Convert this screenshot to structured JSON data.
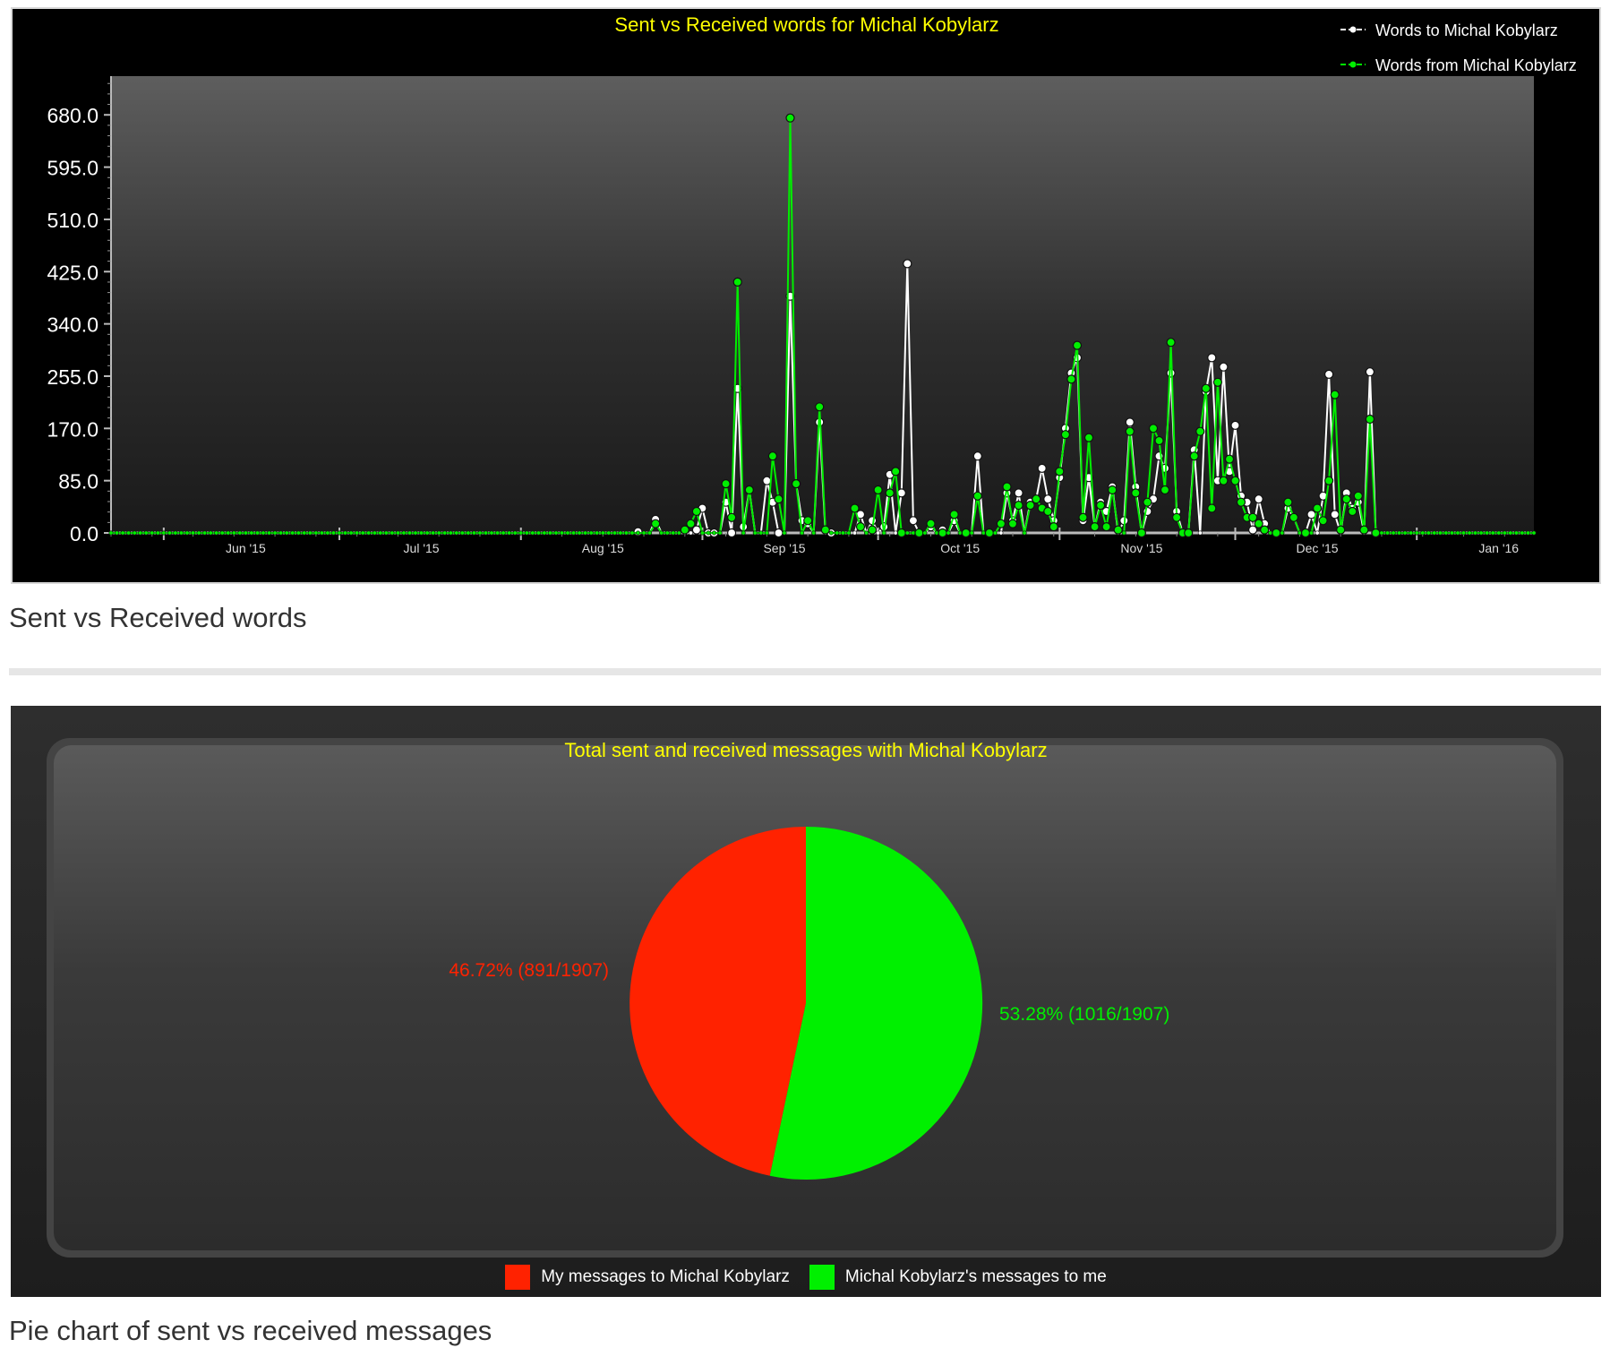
{
  "line_chart": {
    "caption": "Sent vs Received words",
    "colors": {
      "title": "#ffff00",
      "received": "#ffffff",
      "sent": "#00ee00",
      "axis_text": "#ffffff"
    },
    "chart_data": {
      "type": "line",
      "title": "Sent vs Received words for Michal Kobylarz",
      "xlabel": "",
      "ylabel": "",
      "x_range": [
        "2015-05-23",
        "2016-01-21"
      ],
      "ylim": [
        0,
        743
      ],
      "y_ticks": [
        "0.0",
        "85.0",
        "170.0",
        "255.0",
        "340.0",
        "425.0",
        "510.0",
        "595.0",
        "680.0"
      ],
      "x_ticks": [
        {
          "label": "Jun '15",
          "date": "2015-06-01"
        },
        {
          "label": "Jul '15",
          "date": "2015-07-01"
        },
        {
          "label": "Aug '15",
          "date": "2015-08-01"
        },
        {
          "label": "Sep '15",
          "date": "2015-09-01"
        },
        {
          "label": "Oct '15",
          "date": "2015-10-01"
        },
        {
          "label": "Nov '15",
          "date": "2015-11-01"
        },
        {
          "label": "Dec '15",
          "date": "2015-12-01"
        },
        {
          "label": "Jan '16",
          "date": "2016-01-01"
        }
      ],
      "legend_position": "top-right",
      "series": [
        {
          "name": "Words to Michal Kobylarz",
          "points": [
            [
              "2015-08-21",
              2
            ],
            [
              "2015-08-24",
              22
            ],
            [
              "2015-08-31",
              5
            ],
            [
              "2015-09-01",
              40
            ],
            [
              "2015-09-02",
              0
            ],
            [
              "2015-09-03",
              0
            ],
            [
              "2015-09-05",
              50
            ],
            [
              "2015-09-06",
              0
            ],
            [
              "2015-09-07",
              235
            ],
            [
              "2015-09-08",
              10
            ],
            [
              "2015-09-09",
              70
            ],
            [
              "2015-09-12",
              85
            ],
            [
              "2015-09-13",
              50
            ],
            [
              "2015-09-14",
              0
            ],
            [
              "2015-09-16",
              385
            ],
            [
              "2015-09-17",
              80
            ],
            [
              "2015-09-18",
              20
            ],
            [
              "2015-09-19",
              15
            ],
            [
              "2015-09-21",
              180
            ],
            [
              "2015-09-23",
              0
            ],
            [
              "2015-09-28",
              30
            ],
            [
              "2015-09-30",
              20
            ],
            [
              "2015-10-02",
              10
            ],
            [
              "2015-10-03",
              95
            ],
            [
              "2015-10-05",
              65
            ],
            [
              "2015-10-06",
              438
            ],
            [
              "2015-10-07",
              20
            ],
            [
              "2015-10-10",
              10
            ],
            [
              "2015-10-12",
              5
            ],
            [
              "2015-10-14",
              20
            ],
            [
              "2015-10-18",
              125
            ],
            [
              "2015-10-20",
              0
            ],
            [
              "2015-10-23",
              65
            ],
            [
              "2015-10-24",
              20
            ],
            [
              "2015-10-25",
              65
            ],
            [
              "2015-10-27",
              50
            ],
            [
              "2015-10-28",
              55
            ],
            [
              "2015-10-29",
              105
            ],
            [
              "2015-10-30",
              55
            ],
            [
              "2015-10-31",
              20
            ],
            [
              "2015-11-01",
              90
            ],
            [
              "2015-11-02",
              170
            ],
            [
              "2015-11-03",
              260
            ],
            [
              "2015-11-04",
              285
            ],
            [
              "2015-11-05",
              20
            ],
            [
              "2015-11-06",
              90
            ],
            [
              "2015-11-07",
              10
            ],
            [
              "2015-11-08",
              50
            ],
            [
              "2015-11-09",
              35
            ],
            [
              "2015-11-10",
              75
            ],
            [
              "2015-11-12",
              20
            ],
            [
              "2015-11-13",
              180
            ],
            [
              "2015-11-14",
              75
            ],
            [
              "2015-11-16",
              35
            ],
            [
              "2015-11-17",
              55
            ],
            [
              "2015-11-18",
              125
            ],
            [
              "2015-11-19",
              105
            ],
            [
              "2015-11-20",
              260
            ],
            [
              "2015-11-21",
              35
            ],
            [
              "2015-11-24",
              135
            ],
            [
              "2015-11-26",
              230
            ],
            [
              "2015-11-27",
              285
            ],
            [
              "2015-11-28",
              85
            ],
            [
              "2015-11-29",
              270
            ],
            [
              "2015-11-30",
              100
            ],
            [
              "2015-12-01",
              175
            ],
            [
              "2015-12-02",
              60
            ],
            [
              "2015-12-03",
              50
            ],
            [
              "2015-12-04",
              5
            ],
            [
              "2015-12-05",
              55
            ],
            [
              "2015-12-06",
              15
            ],
            [
              "2015-12-10",
              40
            ],
            [
              "2015-12-11",
              25
            ],
            [
              "2015-12-14",
              30
            ],
            [
              "2015-12-16",
              60
            ],
            [
              "2015-12-17",
              258
            ],
            [
              "2015-12-18",
              30
            ],
            [
              "2015-12-20",
              65
            ],
            [
              "2015-12-21",
              40
            ],
            [
              "2015-12-22",
              50
            ],
            [
              "2015-12-24",
              262
            ],
            [
              "2015-12-25",
              0
            ]
          ]
        },
        {
          "name": "Words from Michal Kobylarz",
          "points": [
            [
              "2015-08-24",
              15
            ],
            [
              "2015-08-29",
              5
            ],
            [
              "2015-08-30",
              15
            ],
            [
              "2015-08-31",
              35
            ],
            [
              "2015-09-05",
              80
            ],
            [
              "2015-09-06",
              25
            ],
            [
              "2015-09-07",
              408
            ],
            [
              "2015-09-09",
              70
            ],
            [
              "2015-09-13",
              125
            ],
            [
              "2015-09-14",
              55
            ],
            [
              "2015-09-16",
              675
            ],
            [
              "2015-09-17",
              80
            ],
            [
              "2015-09-19",
              20
            ],
            [
              "2015-09-21",
              205
            ],
            [
              "2015-09-22",
              5
            ],
            [
              "2015-09-27",
              40
            ],
            [
              "2015-09-28",
              10
            ],
            [
              "2015-09-30",
              5
            ],
            [
              "2015-10-01",
              70
            ],
            [
              "2015-10-03",
              65
            ],
            [
              "2015-10-04",
              100
            ],
            [
              "2015-10-05",
              0
            ],
            [
              "2015-10-08",
              0
            ],
            [
              "2015-10-10",
              15
            ],
            [
              "2015-10-12",
              0
            ],
            [
              "2015-10-14",
              30
            ],
            [
              "2015-10-16",
              0
            ],
            [
              "2015-10-18",
              60
            ],
            [
              "2015-10-20",
              0
            ],
            [
              "2015-10-22",
              15
            ],
            [
              "2015-10-23",
              75
            ],
            [
              "2015-10-24",
              15
            ],
            [
              "2015-10-25",
              45
            ],
            [
              "2015-10-27",
              45
            ],
            [
              "2015-10-28",
              55
            ],
            [
              "2015-10-29",
              40
            ],
            [
              "2015-10-30",
              35
            ],
            [
              "2015-10-31",
              10
            ],
            [
              "2015-11-01",
              100
            ],
            [
              "2015-11-02",
              160
            ],
            [
              "2015-11-03",
              250
            ],
            [
              "2015-11-04",
              305
            ],
            [
              "2015-11-05",
              25
            ],
            [
              "2015-11-06",
              155
            ],
            [
              "2015-11-07",
              10
            ],
            [
              "2015-11-08",
              45
            ],
            [
              "2015-11-09",
              10
            ],
            [
              "2015-11-10",
              70
            ],
            [
              "2015-11-11",
              5
            ],
            [
              "2015-11-13",
              165
            ],
            [
              "2015-11-14",
              65
            ],
            [
              "2015-11-15",
              0
            ],
            [
              "2015-11-16",
              50
            ],
            [
              "2015-11-17",
              170
            ],
            [
              "2015-11-18",
              150
            ],
            [
              "2015-11-19",
              70
            ],
            [
              "2015-11-20",
              310
            ],
            [
              "2015-11-21",
              25
            ],
            [
              "2015-11-22",
              0
            ],
            [
              "2015-11-23",
              0
            ],
            [
              "2015-11-24",
              125
            ],
            [
              "2015-11-25",
              165
            ],
            [
              "2015-11-26",
              235
            ],
            [
              "2015-11-27",
              40
            ],
            [
              "2015-11-28",
              245
            ],
            [
              "2015-11-29",
              85
            ],
            [
              "2015-11-30",
              120
            ],
            [
              "2015-12-01",
              85
            ],
            [
              "2015-12-02",
              50
            ],
            [
              "2015-12-03",
              25
            ],
            [
              "2015-12-04",
              25
            ],
            [
              "2015-12-05",
              15
            ],
            [
              "2015-12-06",
              5
            ],
            [
              "2015-12-08",
              0
            ],
            [
              "2015-12-10",
              50
            ],
            [
              "2015-12-11",
              25
            ],
            [
              "2015-12-13",
              0
            ],
            [
              "2015-12-15",
              40
            ],
            [
              "2015-12-16",
              20
            ],
            [
              "2015-12-17",
              85
            ],
            [
              "2015-12-18",
              225
            ],
            [
              "2015-12-19",
              5
            ],
            [
              "2015-12-20",
              55
            ],
            [
              "2015-12-21",
              35
            ],
            [
              "2015-12-22",
              60
            ],
            [
              "2015-12-23",
              5
            ],
            [
              "2015-12-24",
              185
            ],
            [
              "2015-12-25",
              0
            ]
          ]
        }
      ]
    }
  },
  "pie_chart": {
    "caption": "Pie chart of sent vs received messages",
    "colors": {
      "title": "#ffff00"
    },
    "chart_data": {
      "type": "pie",
      "title": "Total sent and received messages with Michal Kobylarz",
      "legend_position": "bottom",
      "slices": [
        {
          "name": "My messages to Michal Kobylarz",
          "value": 891,
          "label": "46.72% (891/1907)",
          "color": "#ff2200"
        },
        {
          "name": "Michal Kobylarz's messages to me",
          "value": 1016,
          "label": "53.28% (1016/1907)",
          "color": "#00f000"
        }
      ]
    }
  }
}
